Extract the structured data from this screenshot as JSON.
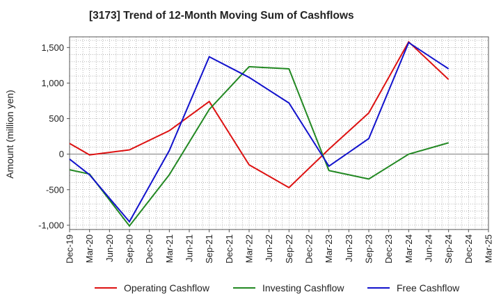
{
  "chart_data": {
    "type": "line",
    "title": "[3173]  Trend of 12-Month Moving Sum of Cashflows",
    "ylabel": "Amount (million yen)",
    "xlabel": "",
    "ylim": [
      -1060,
      1650
    ],
    "yticks": [
      -1000,
      -500,
      0,
      500,
      1000,
      1500
    ],
    "ytick_labels": [
      "-1,000",
      "-500",
      "0",
      "500",
      "1,000",
      "1,500"
    ],
    "categories": [
      "Dec-19",
      "Mar-20",
      "Jun-20",
      "Sep-20",
      "Dec-20",
      "Mar-21",
      "Jun-21",
      "Sep-21",
      "Dec-21",
      "Mar-22",
      "Jun-22",
      "Sep-22",
      "Dec-22",
      "Mar-23",
      "Jun-23",
      "Sep-23",
      "Dec-23",
      "Mar-24",
      "Jun-24",
      "Sep-24",
      "Dec-24",
      "Mar-25"
    ],
    "grid": true,
    "legend_position": "bottom",
    "series": [
      {
        "name": "Operating Cashflow",
        "color": "#dd1111",
        "points": [
          {
            "x": "Dec-19",
            "y": 150
          },
          {
            "x": "Mar-20",
            "y": -10
          },
          {
            "x": "Sep-20",
            "y": 60
          },
          {
            "x": "Mar-21",
            "y": 330
          },
          {
            "x": "Sep-21",
            "y": 740
          },
          {
            "x": "Mar-22",
            "y": -150
          },
          {
            "x": "Sep-22",
            "y": -470
          },
          {
            "x": "Mar-23",
            "y": 70
          },
          {
            "x": "Sep-23",
            "y": 580
          },
          {
            "x": "Mar-24",
            "y": 1580
          },
          {
            "x": "Sep-24",
            "y": 1050
          }
        ]
      },
      {
        "name": "Investing Cashflow",
        "color": "#228822",
        "points": [
          {
            "x": "Dec-19",
            "y": -220
          },
          {
            "x": "Mar-20",
            "y": -280
          },
          {
            "x": "Sep-20",
            "y": -1010
          },
          {
            "x": "Mar-21",
            "y": -290
          },
          {
            "x": "Sep-21",
            "y": 630
          },
          {
            "x": "Mar-22",
            "y": 1230
          },
          {
            "x": "Sep-22",
            "y": 1200
          },
          {
            "x": "Mar-23",
            "y": -230
          },
          {
            "x": "Sep-23",
            "y": -350
          },
          {
            "x": "Mar-24",
            "y": 0
          },
          {
            "x": "Sep-24",
            "y": 160
          }
        ]
      },
      {
        "name": "Free Cashflow",
        "color": "#1111cc",
        "points": [
          {
            "x": "Dec-19",
            "y": -70
          },
          {
            "x": "Mar-20",
            "y": -290
          },
          {
            "x": "Sep-20",
            "y": -950
          },
          {
            "x": "Mar-21",
            "y": 50
          },
          {
            "x": "Sep-21",
            "y": 1370
          },
          {
            "x": "Mar-22",
            "y": 1080
          },
          {
            "x": "Sep-22",
            "y": 720
          },
          {
            "x": "Mar-23",
            "y": -170
          },
          {
            "x": "Sep-23",
            "y": 220
          },
          {
            "x": "Mar-24",
            "y": 1570
          },
          {
            "x": "Sep-24",
            "y": 1200
          }
        ]
      }
    ]
  }
}
